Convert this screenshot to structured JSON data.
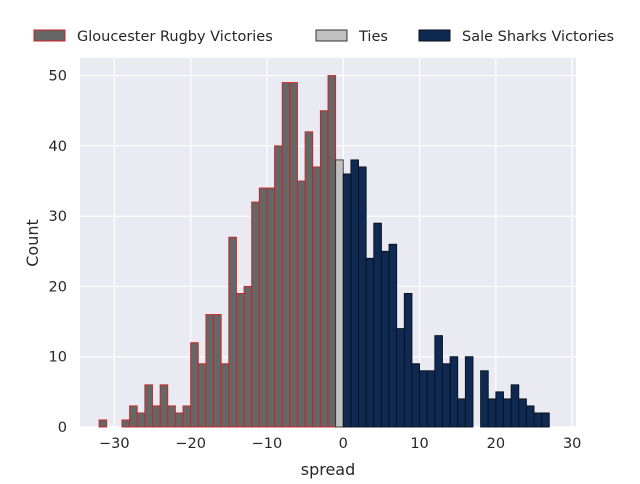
{
  "chart_data": {
    "type": "bar",
    "title": "",
    "xlabel": "spread",
    "ylabel": "Count",
    "xlim": [
      -34.5,
      30.5
    ],
    "ylim": [
      0,
      52.5
    ],
    "x_ticks": [
      -30,
      -20,
      -10,
      0,
      10,
      20,
      30
    ],
    "x_tick_labels": [
      "−30",
      "−20",
      "−10",
      "0",
      "10",
      "20",
      "30"
    ],
    "y_ticks": [
      0,
      10,
      20,
      30,
      40,
      50
    ],
    "y_tick_labels": [
      "0",
      "10",
      "20",
      "30",
      "40",
      "50"
    ],
    "grid": true,
    "legend_position": "top",
    "bin_width": 1,
    "series": [
      {
        "name": "Gloucester Rugby Victories",
        "fill": "#666666",
        "edge": "#cc2222",
        "bins": [
          [
            -32,
            1
          ],
          [
            -29,
            1
          ],
          [
            -28,
            3
          ],
          [
            -27,
            2
          ],
          [
            -26,
            6
          ],
          [
            -25,
            3
          ],
          [
            -24,
            6
          ],
          [
            -23,
            3
          ],
          [
            -22,
            2
          ],
          [
            -21,
            3
          ],
          [
            -20,
            12
          ],
          [
            -19,
            9
          ],
          [
            -18,
            16
          ],
          [
            -17,
            16
          ],
          [
            -16,
            9
          ],
          [
            -15,
            27
          ],
          [
            -14,
            19
          ],
          [
            -13,
            20
          ],
          [
            -12,
            32
          ],
          [
            -11,
            34
          ],
          [
            -10,
            34
          ],
          [
            -9,
            40
          ],
          [
            -8,
            49
          ],
          [
            -7,
            49
          ],
          [
            -6,
            35
          ],
          [
            -5,
            42
          ],
          [
            -4,
            37
          ],
          [
            -3,
            45
          ],
          [
            -2,
            50
          ]
        ]
      },
      {
        "name": "Ties",
        "fill": "#c0c0c0",
        "edge": "#333333",
        "bins": [
          [
            -1,
            38
          ]
        ]
      },
      {
        "name": "Sale Sharks Victories",
        "fill": "#0f2a52",
        "edge": "#0a0f1a",
        "bins": [
          [
            0,
            36
          ],
          [
            1,
            38
          ],
          [
            2,
            37
          ],
          [
            3,
            24
          ],
          [
            4,
            29
          ],
          [
            5,
            25
          ],
          [
            6,
            26
          ],
          [
            7,
            14
          ],
          [
            8,
            19
          ],
          [
            9,
            9
          ],
          [
            10,
            8
          ],
          [
            11,
            8
          ],
          [
            12,
            13
          ],
          [
            13,
            9
          ],
          [
            14,
            10
          ],
          [
            15,
            4
          ],
          [
            16,
            10
          ],
          [
            18,
            8
          ],
          [
            19,
            4
          ],
          [
            20,
            5
          ],
          [
            21,
            4
          ],
          [
            22,
            6
          ],
          [
            23,
            4
          ],
          [
            24,
            3
          ],
          [
            25,
            2
          ],
          [
            26,
            2
          ]
        ]
      }
    ]
  }
}
